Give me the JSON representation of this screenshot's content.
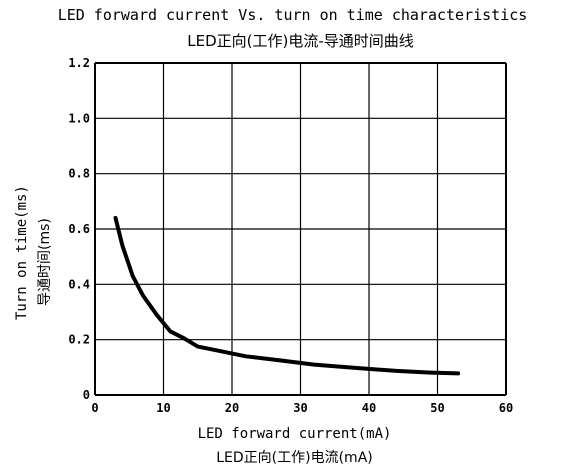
{
  "chart_data": {
    "type": "line",
    "title": "LED forward current Vs. turn on time characteristics",
    "subtitle": "LED正向(工作)电流-导通时间曲线",
    "xlabel": "LED forward current(mA)",
    "xlabel_zh": "LED正向(工作)电流(mA)",
    "ylabel": "Turn on time(ms)",
    "ylabel_zh": "导通时间(ms)",
    "xlim": [
      0,
      60
    ],
    "ylim": [
      0,
      1.2
    ],
    "xticks": [
      "0",
      "10",
      "20",
      "30",
      "40",
      "50",
      "60"
    ],
    "yticks": [
      "0",
      "0.2",
      "0.4",
      "0.6",
      "0.8",
      "1.0",
      "1.2"
    ],
    "grid": true,
    "series": [
      {
        "x": [
          3,
          4,
          5.5,
          7,
          9,
          11,
          13,
          15,
          18,
          22,
          27,
          32,
          38,
          44,
          49,
          53
        ],
        "y": [
          0.64,
          0.54,
          0.43,
          0.36,
          0.29,
          0.23,
          0.205,
          0.175,
          0.16,
          0.14,
          0.125,
          0.11,
          0.098,
          0.087,
          0.081,
          0.078
        ],
        "color": "#000000"
      }
    ]
  }
}
